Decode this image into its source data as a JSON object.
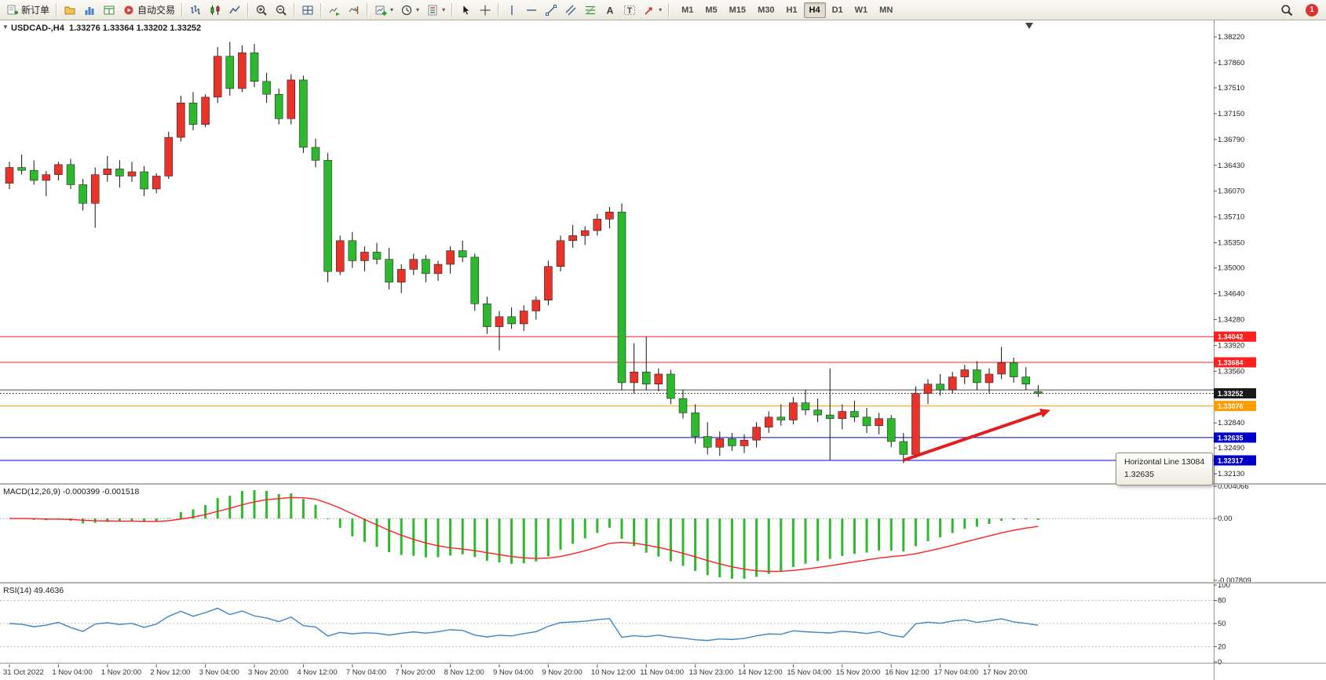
{
  "toolbar": {
    "buttons": [
      {
        "name": "new-order",
        "label": "新订单",
        "icon": "new-order"
      },
      {
        "sep": true
      },
      {
        "name": "profiles",
        "icon": "profiles"
      },
      {
        "name": "market-watch",
        "icon": "market-watch"
      },
      {
        "name": "data-window",
        "icon": "data-window"
      },
      {
        "name": "auto-trading",
        "label": "自动交易",
        "icon": "auto-trading"
      },
      {
        "sep": true
      },
      {
        "name": "bar-chart",
        "icon": "bar-chart"
      },
      {
        "name": "candlestick-chart",
        "icon": "candles"
      },
      {
        "name": "line-chart",
        "icon": "line-chart"
      },
      {
        "sep": true
      },
      {
        "name": "zoom-in",
        "icon": "zoom-in"
      },
      {
        "name": "zoom-out",
        "icon": "zoom-out"
      },
      {
        "sep": true
      },
      {
        "name": "tile-windows",
        "icon": "grid"
      },
      {
        "sep": true
      },
      {
        "name": "auto-scroll",
        "icon": "auto-scroll"
      },
      {
        "name": "chart-shift",
        "icon": "chart-shift"
      },
      {
        "sep": true
      },
      {
        "name": "new-chart",
        "icon": "new-chart",
        "dropdown": true
      },
      {
        "name": "period",
        "icon": "clock",
        "dropdown": true
      },
      {
        "name": "template",
        "icon": "template",
        "dropdown": true
      },
      {
        "sep": true
      },
      {
        "name": "cursor",
        "icon": "cursor"
      },
      {
        "name": "crosshair",
        "icon": "crosshair"
      },
      {
        "sep": true
      },
      {
        "name": "vertical-line",
        "icon": "vline"
      },
      {
        "name": "horizontal-line",
        "icon": "hline"
      },
      {
        "name": "trendline",
        "icon": "trendline"
      },
      {
        "name": "equidistant-channel",
        "icon": "channel"
      },
      {
        "name": "fibonacci",
        "icon": "fibo"
      },
      {
        "name": "text",
        "icon": "text"
      },
      {
        "name": "text-label",
        "icon": "text-label"
      },
      {
        "name": "arrows",
        "icon": "arrows",
        "dropdown": true
      },
      {
        "sep": true
      }
    ],
    "timeframes": [
      "M1",
      "M5",
      "M15",
      "M30",
      "H1",
      "H4",
      "D1",
      "W1",
      "MN"
    ],
    "active_timeframe": "H4",
    "badge": "1"
  },
  "chart": {
    "title": "USDCAD-,H4  1.33276 1.33364 1.33202 1.33252",
    "symbol": "USDCAD-",
    "period": "H4",
    "ohlc": {
      "open": "1.33276",
      "high": "1.33364",
      "low": "1.33202",
      "close": "1.33252"
    }
  },
  "tooltip": {
    "title": "Horizontal Line 13084",
    "value": "1.32635"
  },
  "chart_data": [
    {
      "type": "candlestick",
      "title": "USDCAD- H4",
      "up_color": "#e8332a",
      "down_color": "#2eb82e",
      "ylim": [
        1.32,
        1.3845
      ],
      "y_ticks": [
        "1.38220",
        "1.37860",
        "1.37510",
        "1.37150",
        "1.36790",
        "1.36430",
        "1.36070",
        "1.35710",
        "1.35350",
        "1.35000",
        "1.34640",
        "1.34280",
        "1.33920",
        "1.33560",
        "1.33200",
        "1.32840",
        "1.32490",
        "1.32130"
      ],
      "x_labels": [
        "31 Oct 2022",
        "1 Nov 04:00",
        "1 Nov 20:00",
        "2 Nov 12:00",
        "3 Nov 04:00",
        "3 Nov 20:00",
        "4 Nov 12:00",
        "7 Nov 04:00",
        "7 Nov 20:00",
        "8 Nov 12:00",
        "9 Nov 04:00",
        "9 Nov 20:00",
        "10 Nov 12:00",
        "11 Nov 04:00",
        "13 Nov 23:00",
        "14 Nov 12:00",
        "15 Nov 04:00",
        "15 Nov 20:00",
        "16 Nov 12:00",
        "17 Nov 04:00",
        "17 Nov 20:00"
      ],
      "bars_per_label": 4,
      "candles": [
        [
          1.3618,
          1.3648,
          1.361,
          1.364
        ],
        [
          1.364,
          1.3658,
          1.363,
          1.3636
        ],
        [
          1.3636,
          1.365,
          1.3616,
          1.3622
        ],
        [
          1.3622,
          1.3635,
          1.36,
          1.363
        ],
        [
          1.363,
          1.3648,
          1.3622,
          1.3644
        ],
        [
          1.3644,
          1.3652,
          1.361,
          1.3616
        ],
        [
          1.3616,
          1.3624,
          1.358,
          1.359
        ],
        [
          1.359,
          1.364,
          1.3556,
          1.363
        ],
        [
          1.363,
          1.3656,
          1.362,
          1.3638
        ],
        [
          1.3638,
          1.365,
          1.3612,
          1.3628
        ],
        [
          1.3628,
          1.3648,
          1.362,
          1.3634
        ],
        [
          1.3634,
          1.3642,
          1.36,
          1.361
        ],
        [
          1.361,
          1.3632,
          1.3604,
          1.3628
        ],
        [
          1.3628,
          1.369,
          1.3624,
          1.3682
        ],
        [
          1.3682,
          1.374,
          1.3676,
          1.373
        ],
        [
          1.373,
          1.3745,
          1.3692,
          1.37
        ],
        [
          1.37,
          1.3742,
          1.3696,
          1.3738
        ],
        [
          1.3738,
          1.3808,
          1.373,
          1.3795
        ],
        [
          1.3795,
          1.3815,
          1.374,
          1.375
        ],
        [
          1.375,
          1.381,
          1.3745,
          1.38
        ],
        [
          1.38,
          1.3812,
          1.3752,
          1.376
        ],
        [
          1.376,
          1.3772,
          1.373,
          1.3742
        ],
        [
          1.3742,
          1.375,
          1.37,
          1.3708
        ],
        [
          1.3708,
          1.377,
          1.37,
          1.3762
        ],
        [
          1.3762,
          1.3768,
          1.366,
          1.3668
        ],
        [
          1.3668,
          1.368,
          1.364,
          1.365
        ],
        [
          1.365,
          1.366,
          1.348,
          1.3495
        ],
        [
          1.3495,
          1.3545,
          1.349,
          1.3538
        ],
        [
          1.3538,
          1.355,
          1.35,
          1.351
        ],
        [
          1.351,
          1.353,
          1.3495,
          1.3522
        ],
        [
          1.3522,
          1.3535,
          1.3505,
          1.3512
        ],
        [
          1.3512,
          1.3528,
          1.347,
          1.348
        ],
        [
          1.348,
          1.3505,
          1.3465,
          1.3498
        ],
        [
          1.3498,
          1.352,
          1.349,
          1.3512
        ],
        [
          1.3512,
          1.3518,
          1.348,
          1.3492
        ],
        [
          1.3492,
          1.351,
          1.3482,
          1.3505
        ],
        [
          1.3505,
          1.353,
          1.3492,
          1.3524
        ],
        [
          1.3524,
          1.3538,
          1.3508,
          1.3515
        ],
        [
          1.3515,
          1.352,
          1.344,
          1.345
        ],
        [
          1.345,
          1.346,
          1.3408,
          1.3418
        ],
        [
          1.3418,
          1.344,
          1.3385,
          1.3432
        ],
        [
          1.3432,
          1.3445,
          1.3415,
          1.3422
        ],
        [
          1.3422,
          1.3448,
          1.3412,
          1.344
        ],
        [
          1.344,
          1.346,
          1.3428,
          1.3455
        ],
        [
          1.3455,
          1.351,
          1.3448,
          1.3502
        ],
        [
          1.3502,
          1.3545,
          1.3495,
          1.3538
        ],
        [
          1.3538,
          1.356,
          1.3528,
          1.3545
        ],
        [
          1.3545,
          1.3558,
          1.3532,
          1.3552
        ],
        [
          1.3552,
          1.3575,
          1.3545,
          1.3568
        ],
        [
          1.3568,
          1.3585,
          1.3555,
          1.3578
        ],
        [
          1.3578,
          1.359,
          1.333,
          1.334
        ],
        [
          1.334,
          1.3395,
          1.3325,
          1.3355
        ],
        [
          1.3355,
          1.3404,
          1.333,
          1.3338
        ],
        [
          1.3338,
          1.336,
          1.3328,
          1.3352
        ],
        [
          1.3352,
          1.3358,
          1.331,
          1.3318
        ],
        [
          1.3318,
          1.333,
          1.329,
          1.3298
        ],
        [
          1.3298,
          1.331,
          1.3255,
          1.3265
        ],
        [
          1.3265,
          1.3285,
          1.324,
          1.325
        ],
        [
          1.325,
          1.3272,
          1.3238,
          1.3262
        ],
        [
          1.3262,
          1.327,
          1.3245,
          1.3252
        ],
        [
          1.3252,
          1.3268,
          1.3242,
          1.326
        ],
        [
          1.326,
          1.3285,
          1.325,
          1.3278
        ],
        [
          1.3278,
          1.33,
          1.327,
          1.3292
        ],
        [
          1.3292,
          1.331,
          1.328,
          1.3288
        ],
        [
          1.3288,
          1.332,
          1.3282,
          1.3312
        ],
        [
          1.3312,
          1.333,
          1.3295,
          1.3302
        ],
        [
          1.3302,
          1.3318,
          1.3285,
          1.3295
        ],
        [
          1.3295,
          1.336,
          1.3232,
          1.329
        ],
        [
          1.329,
          1.331,
          1.3275,
          1.33
        ],
        [
          1.33,
          1.3315,
          1.3285,
          1.3292
        ],
        [
          1.3292,
          1.3305,
          1.327,
          1.328
        ],
        [
          1.328,
          1.3298,
          1.3268,
          1.329
        ],
        [
          1.329,
          1.3295,
          1.325,
          1.3258
        ],
        [
          1.3258,
          1.327,
          1.3228,
          1.324
        ],
        [
          1.324,
          1.3335,
          1.3235,
          1.3325
        ],
        [
          1.3325,
          1.3345,
          1.331,
          1.3338
        ],
        [
          1.3338,
          1.3352,
          1.3322,
          1.333
        ],
        [
          1.333,
          1.3355,
          1.3325,
          1.3348
        ],
        [
          1.3348,
          1.3365,
          1.3338,
          1.3358
        ],
        [
          1.3358,
          1.337,
          1.333,
          1.334
        ],
        [
          1.334,
          1.336,
          1.3325,
          1.3352
        ],
        [
          1.3352,
          1.339,
          1.3345,
          1.3368
        ],
        [
          1.3368,
          1.3375,
          1.334,
          1.3348
        ],
        [
          1.3348,
          1.3362,
          1.333,
          1.3338
        ],
        [
          1.33276,
          1.33364,
          1.33202,
          1.33252
        ]
      ],
      "hlines": [
        {
          "price": 1.34042,
          "color": "#ff2020",
          "label": "1.34042",
          "style": "solid"
        },
        {
          "price": 1.33684,
          "color": "#ff2020",
          "label": "1.33684",
          "style": "solid"
        },
        {
          "price": 1.333,
          "color": "#4a4a4a",
          "style": "solid"
        },
        {
          "price": 1.33252,
          "color": "#1a1a1a",
          "label": "1.33252",
          "style": "dotted",
          "role": "bid"
        },
        {
          "price": 1.33076,
          "color": "#ff9c00",
          "label": "1.33076",
          "style": "solid"
        },
        {
          "price": 1.32635,
          "color": "#0000c8",
          "label": "1.32635",
          "style": "solid"
        },
        {
          "price": 1.32317,
          "color": "#0000c8",
          "label": "1.32317",
          "style": "solid"
        }
      ],
      "trend_arrow": {
        "from_index": 73,
        "from_price": 1.3232,
        "to_index": 85,
        "to_price": 1.3302,
        "color": "#e01f1f"
      }
    },
    {
      "type": "bar",
      "name": "MACD",
      "label": "MACD(12,26,9) -0.000399 -0.001518",
      "params": [
        12,
        26,
        9
      ],
      "macd_value": "-0.000399",
      "signal_value": "-0.001518",
      "ylim": [
        -0.007809,
        0.004066
      ],
      "y_ticks": [
        "0.004066",
        "0.00",
        "-0.007809"
      ],
      "histogram_color": "#2eb82e",
      "signal_color": "#ff2020"
    },
    {
      "type": "line",
      "name": "RSI",
      "label": "RSI(14) 49.4636",
      "period": 14,
      "current": "49.4636",
      "ylim": [
        0,
        100
      ],
      "y_ticks": [
        "100",
        "80",
        "50",
        "20",
        "0"
      ],
      "levels": [
        80,
        50,
        20
      ],
      "line_color": "#3d85c8"
    }
  ]
}
